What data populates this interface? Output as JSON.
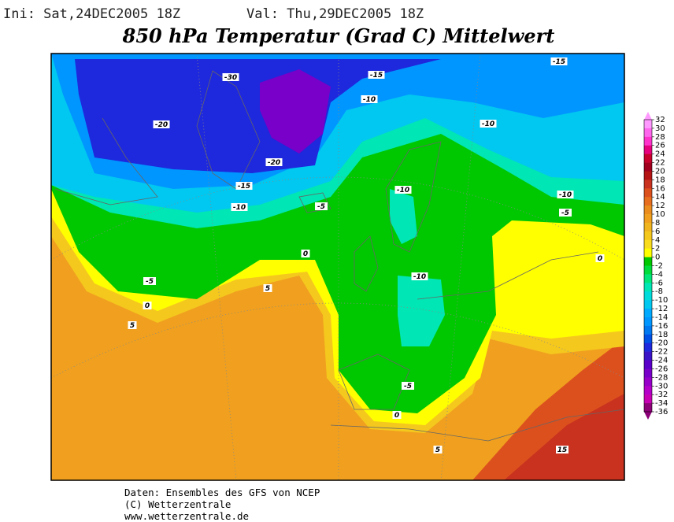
{
  "header": {
    "init": "Ini: Sat,24DEC2005 18Z",
    "valid": "Val: Thu,29DEC2005 18Z",
    "title": "850 hPa Temperatur (Grad C) Mittelwert"
  },
  "map": {
    "contour_labels": [
      "-30",
      "-15",
      "-15",
      "-20",
      "-10",
      "-10",
      "-20",
      "-15",
      "-10",
      "-5",
      "-10",
      "-10",
      "-5",
      "0",
      "0",
      "-5",
      "-10",
      "5",
      "0",
      "5",
      "-5",
      "0",
      "5",
      "15"
    ]
  },
  "colorbar": {
    "ticks": [
      32,
      30,
      28,
      26,
      24,
      22,
      20,
      18,
      16,
      14,
      12,
      10,
      8,
      6,
      4,
      2,
      0,
      -2,
      -4,
      -6,
      -8,
      -10,
      -12,
      -14,
      -16,
      -18,
      -20,
      -22,
      -24,
      -26,
      -28,
      -30,
      -32,
      -34,
      -36
    ],
    "colors": [
      "#ff99ff",
      "#ff66ee",
      "#ff33cc",
      "#e6007e",
      "#c8002c",
      "#a0001e",
      "#b41414",
      "#c8321e",
      "#dc501e",
      "#e66e1e",
      "#eb8c1e",
      "#f0a01e",
      "#f0b41e",
      "#f5c81e",
      "#fadc1e",
      "#ffff00",
      "#00c800",
      "#00dc3c",
      "#00e678",
      "#00e6b4",
      "#00dcdc",
      "#00c8f0",
      "#00aaff",
      "#0096ff",
      "#0078f0",
      "#0050e6",
      "#1e28dc",
      "#3c14c8",
      "#5a00c8",
      "#7800c8",
      "#9600c8",
      "#b400c8",
      "#c800b4",
      "#8c0078"
    ]
  },
  "footer": {
    "lines": [
      "Daten: Ensembles des GFS von NCEP",
      "(C) Wetterzentrale",
      "www.wetterzentrale.de"
    ]
  }
}
